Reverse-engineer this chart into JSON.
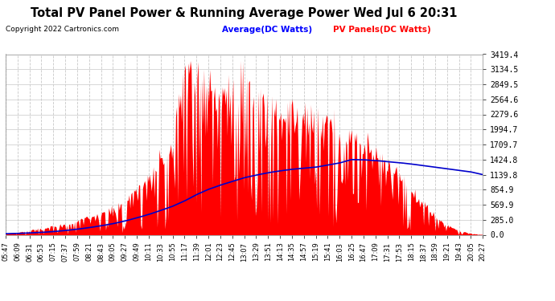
{
  "title": "Total PV Panel Power & Running Average Power Wed Jul 6 20:31",
  "copyright": "Copyright 2022 Cartronics.com",
  "legend_avg": "Average(DC Watts)",
  "legend_pv": "PV Panels(DC Watts)",
  "yticks": [
    0.0,
    285.0,
    569.9,
    854.9,
    1139.8,
    1424.8,
    1709.7,
    1994.7,
    2279.6,
    2564.6,
    2849.5,
    3134.5,
    3419.4
  ],
  "ymax": 3419.4,
  "bg_color": "#ffffff",
  "grid_color": "#c8c8c8",
  "fill_color": "#ff0000",
  "line_color": "#0000cc",
  "xtick_labels": [
    "05:47",
    "06:09",
    "06:31",
    "06:53",
    "07:15",
    "07:37",
    "07:59",
    "08:21",
    "08:43",
    "09:05",
    "09:27",
    "09:49",
    "10:11",
    "10:33",
    "10:55",
    "11:17",
    "11:39",
    "12:01",
    "12:23",
    "12:45",
    "13:07",
    "13:29",
    "13:51",
    "14:13",
    "14:35",
    "14:57",
    "15:19",
    "15:41",
    "16:03",
    "16:25",
    "16:47",
    "17:09",
    "17:31",
    "17:53",
    "18:15",
    "18:37",
    "18:59",
    "19:21",
    "19:43",
    "20:05",
    "20:27"
  ],
  "pv_values": [
    30,
    50,
    90,
    120,
    160,
    200,
    280,
    340,
    400,
    500,
    700,
    900,
    1100,
    1500,
    1700,
    3419,
    2900,
    2800,
    2700,
    2850,
    3000,
    2700,
    2600,
    2500,
    2450,
    2400,
    2350,
    2200,
    2000,
    1900,
    1800,
    1600,
    1400,
    1200,
    900,
    600,
    350,
    180,
    80,
    30,
    5
  ],
  "avg_values": [
    20,
    25,
    35,
    45,
    60,
    80,
    105,
    135,
    170,
    210,
    260,
    320,
    385,
    460,
    540,
    640,
    760,
    860,
    940,
    1010,
    1080,
    1130,
    1175,
    1210,
    1240,
    1260,
    1280,
    1320,
    1360,
    1424,
    1420,
    1405,
    1385,
    1365,
    1340,
    1310,
    1280,
    1250,
    1220,
    1190,
    1139
  ]
}
